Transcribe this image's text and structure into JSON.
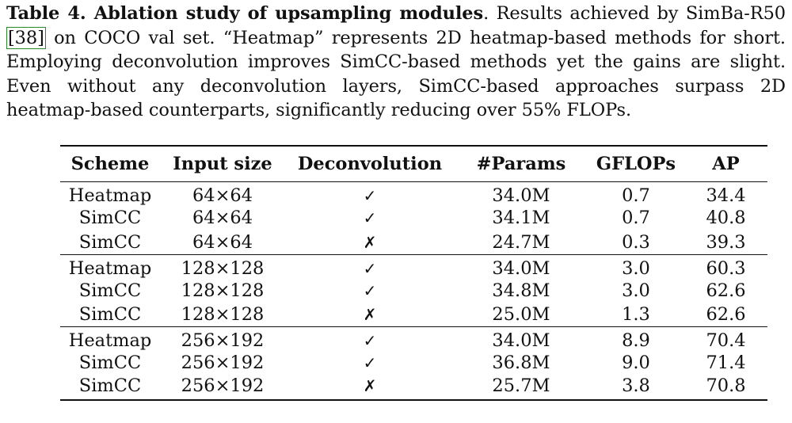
{
  "caption": {
    "label": "Table 4. Ablation study of upsampling modules",
    "pre_ref": ". Results achieved by SimBa-R50 ",
    "ref": "[38]",
    "post_ref": " on COCO val set. “Heatmap” represents 2D heatmap-based methods for short. Employing deconvolution improves SimCC-based methods yet the gains are slight. Even without any deconvolution layers, SimCC-based approaches surpass 2D heatmap-based counterparts, significantly reducing over 55% FLOPs."
  },
  "table": {
    "headers": [
      "Scheme",
      "Input size",
      "Deconvolution",
      "#Params",
      "GFLOPs",
      "AP"
    ],
    "marks": {
      "check": "✓",
      "cross": "✗"
    },
    "groups": [
      {
        "rows": [
          {
            "scheme": "Heatmap",
            "scheme_bold": false,
            "input": "64×64",
            "deconv": "✓",
            "deconv_type": "check",
            "params": "34.0M",
            "params_bold": false,
            "gflops": "0.7",
            "gflops_bold": false,
            "ap": "34.4",
            "ap_bold": false
          },
          {
            "scheme": "SimCC",
            "scheme_bold": true,
            "input": "64×64",
            "deconv": "✓",
            "deconv_type": "check",
            "params": "34.1M",
            "params_bold": false,
            "gflops": "0.7",
            "gflops_bold": false,
            "ap": "40.8",
            "ap_bold": true
          },
          {
            "scheme": "SimCC",
            "scheme_bold": true,
            "input": "64×64",
            "deconv": "✗",
            "deconv_type": "cross",
            "params": "24.7M",
            "params_bold": true,
            "gflops": "0.3",
            "gflops_bold": true,
            "ap": "39.3",
            "ap_bold": false
          }
        ]
      },
      {
        "rows": [
          {
            "scheme": "Heatmap",
            "scheme_bold": false,
            "input": "128×128",
            "deconv": "✓",
            "deconv_type": "check",
            "params": "34.0M",
            "params_bold": false,
            "gflops": "3.0",
            "gflops_bold": false,
            "ap": "60.3",
            "ap_bold": false
          },
          {
            "scheme": "SimCC",
            "scheme_bold": true,
            "input": "128×128",
            "deconv": "✓",
            "deconv_type": "check",
            "params": "34.8M",
            "params_bold": false,
            "gflops": "3.0",
            "gflops_bold": false,
            "ap": "62.6",
            "ap_bold": true
          },
          {
            "scheme": "SimCC",
            "scheme_bold": true,
            "input": "128×128",
            "deconv": "✗",
            "deconv_type": "cross",
            "params": "25.0M",
            "params_bold": true,
            "gflops": "1.3",
            "gflops_bold": true,
            "ap": "62.6",
            "ap_bold": true
          }
        ]
      },
      {
        "rows": [
          {
            "scheme": "Heatmap",
            "scheme_bold": false,
            "input": "256×192",
            "deconv": "✓",
            "deconv_type": "check",
            "params": "34.0M",
            "params_bold": false,
            "gflops": "8.9",
            "gflops_bold": false,
            "ap": "70.4",
            "ap_bold": false
          },
          {
            "scheme": "SimCC",
            "scheme_bold": true,
            "input": "256×192",
            "deconv": "✓",
            "deconv_type": "check",
            "params": "36.8M",
            "params_bold": false,
            "gflops": "9.0",
            "gflops_bold": false,
            "ap": "71.4",
            "ap_bold": true
          },
          {
            "scheme": "SimCC",
            "scheme_bold": true,
            "input": "256×192",
            "deconv": "✗",
            "deconv_type": "cross",
            "params": "25.7M",
            "params_bold": true,
            "gflops": "3.8",
            "gflops_bold": true,
            "ap": "70.8",
            "ap_bold": false
          }
        ]
      }
    ]
  }
}
